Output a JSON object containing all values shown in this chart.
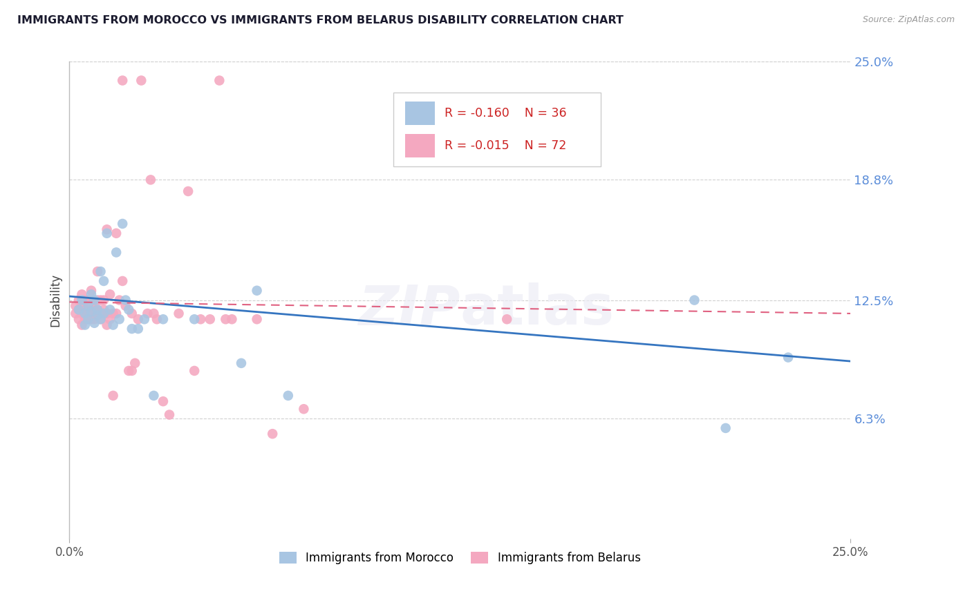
{
  "title": "IMMIGRANTS FROM MOROCCO VS IMMIGRANTS FROM BELARUS DISABILITY CORRELATION CHART",
  "source": "Source: ZipAtlas.com",
  "ylabel": "Disability",
  "x_min": 0.0,
  "x_max": 0.25,
  "y_min": 0.0,
  "y_max": 0.25,
  "y_tick_labels": [
    "25.0%",
    "18.8%",
    "12.5%",
    "6.3%"
  ],
  "y_tick_values": [
    0.25,
    0.188,
    0.125,
    0.063
  ],
  "watermark": "ZIPatlas",
  "legend_r1": "-0.160",
  "legend_n1": "36",
  "legend_r2": "-0.015",
  "legend_n2": "72",
  "color_morocco": "#a8c5e2",
  "color_belarus": "#f4a8c0",
  "color_trendline_morocco": "#3575c0",
  "color_trendline_belarus": "#e06080",
  "legend_label1": "Immigrants from Morocco",
  "legend_label2": "Immigrants from Belarus",
  "morocco_trendline_x": [
    0.0,
    0.25
  ],
  "morocco_trendline_y": [
    0.127,
    0.093
  ],
  "belarus_trendline_x": [
    0.0,
    0.25
  ],
  "belarus_trendline_y": [
    0.124,
    0.118
  ],
  "morocco_x": [
    0.003,
    0.004,
    0.005,
    0.005,
    0.006,
    0.006,
    0.007,
    0.007,
    0.008,
    0.008,
    0.009,
    0.009,
    0.01,
    0.01,
    0.011,
    0.011,
    0.012,
    0.013,
    0.014,
    0.015,
    0.016,
    0.017,
    0.018,
    0.019,
    0.02,
    0.022,
    0.024,
    0.027,
    0.03,
    0.04,
    0.055,
    0.06,
    0.07,
    0.2,
    0.21,
    0.23
  ],
  "morocco_y": [
    0.12,
    0.125,
    0.112,
    0.118,
    0.122,
    0.115,
    0.128,
    0.119,
    0.113,
    0.125,
    0.117,
    0.12,
    0.14,
    0.115,
    0.135,
    0.118,
    0.16,
    0.12,
    0.112,
    0.15,
    0.115,
    0.165,
    0.125,
    0.12,
    0.11,
    0.11,
    0.115,
    0.075,
    0.115,
    0.115,
    0.092,
    0.13,
    0.075,
    0.125,
    0.058,
    0.095
  ],
  "belarus_x": [
    0.002,
    0.002,
    0.003,
    0.003,
    0.003,
    0.004,
    0.004,
    0.004,
    0.004,
    0.005,
    0.005,
    0.005,
    0.005,
    0.006,
    0.006,
    0.006,
    0.006,
    0.007,
    0.007,
    0.007,
    0.007,
    0.008,
    0.008,
    0.008,
    0.008,
    0.009,
    0.009,
    0.009,
    0.009,
    0.01,
    0.01,
    0.01,
    0.011,
    0.011,
    0.011,
    0.012,
    0.012,
    0.012,
    0.013,
    0.013,
    0.014,
    0.014,
    0.015,
    0.015,
    0.016,
    0.017,
    0.017,
    0.018,
    0.019,
    0.02,
    0.02,
    0.021,
    0.022,
    0.023,
    0.025,
    0.026,
    0.027,
    0.028,
    0.03,
    0.032,
    0.035,
    0.038,
    0.04,
    0.042,
    0.045,
    0.048,
    0.05,
    0.052,
    0.06,
    0.065,
    0.075,
    0.14
  ],
  "belarus_y": [
    0.118,
    0.122,
    0.115,
    0.12,
    0.125,
    0.112,
    0.118,
    0.123,
    0.128,
    0.115,
    0.12,
    0.118,
    0.125,
    0.115,
    0.12,
    0.118,
    0.125,
    0.115,
    0.12,
    0.118,
    0.13,
    0.115,
    0.12,
    0.118,
    0.125,
    0.14,
    0.118,
    0.12,
    0.125,
    0.118,
    0.115,
    0.125,
    0.118,
    0.12,
    0.125,
    0.162,
    0.118,
    0.112,
    0.128,
    0.115,
    0.118,
    0.075,
    0.16,
    0.118,
    0.125,
    0.24,
    0.135,
    0.122,
    0.088,
    0.088,
    0.118,
    0.092,
    0.115,
    0.24,
    0.118,
    0.188,
    0.118,
    0.115,
    0.072,
    0.065,
    0.118,
    0.182,
    0.088,
    0.115,
    0.115,
    0.24,
    0.115,
    0.115,
    0.115,
    0.055,
    0.068,
    0.115
  ]
}
